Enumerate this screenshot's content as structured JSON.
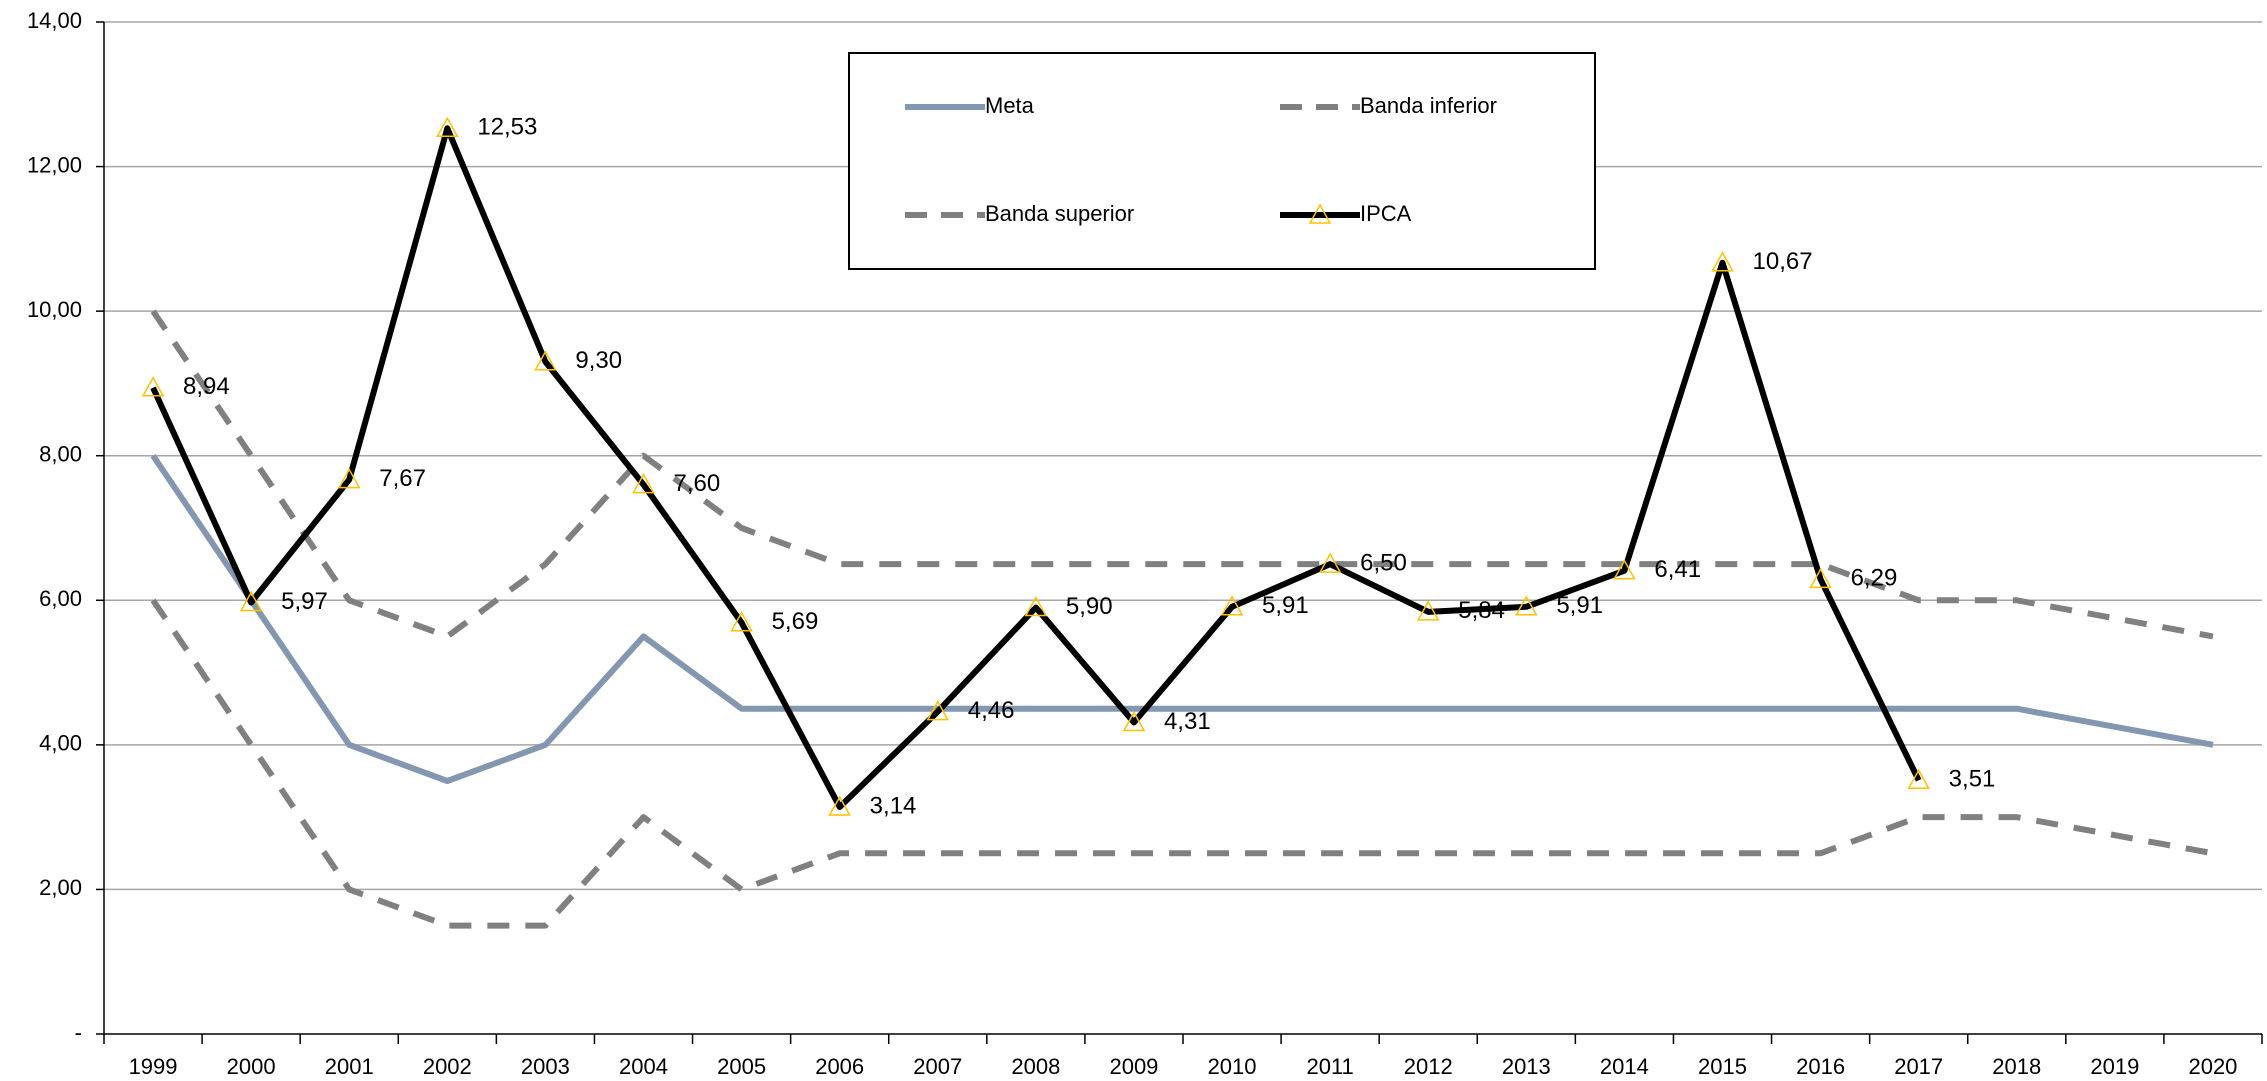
{
  "chart_data": {
    "type": "line",
    "categories": [
      "1999",
      "2000",
      "2001",
      "2002",
      "2003",
      "2004",
      "2005",
      "2006",
      "2007",
      "2008",
      "2009",
      "2010",
      "2011",
      "2012",
      "2013",
      "2014",
      "2015",
      "2016",
      "2017",
      "2018",
      "2019",
      "2020"
    ],
    "series": [
      {
        "name": "Meta",
        "color": "#8497b0",
        "dash": "solid",
        "values": [
          8,
          6,
          4,
          3.5,
          4,
          5.5,
          4.5,
          4.5,
          4.5,
          4.5,
          4.5,
          4.5,
          4.5,
          4.5,
          4.5,
          4.5,
          4.5,
          4.5,
          4.5,
          4.5,
          4.25,
          4
        ]
      },
      {
        "name": "Banda inferior",
        "color": "#808080",
        "dash": "dashed",
        "values": [
          6,
          4,
          2,
          1.5,
          1.5,
          3,
          2,
          2.5,
          2.5,
          2.5,
          2.5,
          2.5,
          2.5,
          2.5,
          2.5,
          2.5,
          2.5,
          2.5,
          3,
          3,
          2.75,
          2.5
        ]
      },
      {
        "name": "Banda superior",
        "color": "#808080",
        "dash": "dashed",
        "values": [
          10,
          8,
          6,
          5.5,
          6.5,
          8,
          7,
          6.5,
          6.5,
          6.5,
          6.5,
          6.5,
          6.5,
          6.5,
          6.5,
          6.5,
          6.5,
          6.5,
          6,
          6,
          5.75,
          5.5
        ]
      },
      {
        "name": "IPCA",
        "color": "#000000",
        "marker": "triangle",
        "marker_color": "#ffc000",
        "dash": "solid",
        "values": [
          8.94,
          5.97,
          7.67,
          12.53,
          9.3,
          7.6,
          5.69,
          3.14,
          4.46,
          5.9,
          4.31,
          5.91,
          6.5,
          5.84,
          5.91,
          6.41,
          10.67,
          6.29,
          3.51,
          null,
          null,
          null
        ],
        "value_labels": [
          "8,94",
          "5,97",
          "7,67",
          "12,53",
          "9,30",
          "7,60",
          "5,69",
          "3,14",
          "4,46",
          "5,90",
          "4,31",
          "5,91",
          "6,50",
          "5,84",
          "5,91",
          "6,41",
          "10,67",
          "6,29",
          "3,51",
          null,
          null,
          null
        ]
      }
    ],
    "ylim": [
      0,
      14
    ],
    "yticks": [
      {
        "value": 0,
        "label": "-"
      },
      {
        "value": 2,
        "label": "2,00"
      },
      {
        "value": 4,
        "label": "4,00"
      },
      {
        "value": 6,
        "label": "6,00"
      },
      {
        "value": 8,
        "label": "8,00"
      },
      {
        "value": 10,
        "label": "10,00"
      },
      {
        "value": 12,
        "label": "12,00"
      },
      {
        "value": 14,
        "label": "14,00"
      }
    ],
    "grid": true
  }
}
